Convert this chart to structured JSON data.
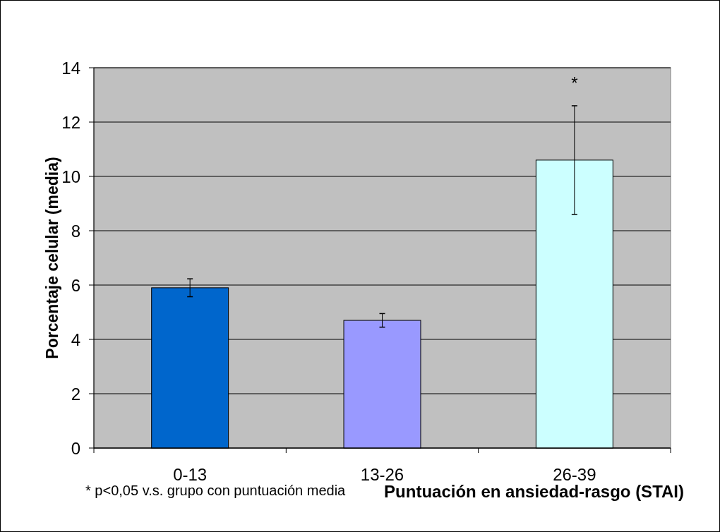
{
  "chart_data": {
    "type": "bar",
    "xlabel": "Puntuación en ansiedad-rasgo (STAI)",
    "ylabel": "Porcentaje celular (media)",
    "categories": [
      "0-13",
      "13-26",
      "26-39"
    ],
    "values": [
      5.9,
      4.7,
      10.6
    ],
    "colors": [
      "#0066cc",
      "#9999ff",
      "#ccffff"
    ],
    "errors": [
      0.33,
      0.25,
      2.0
    ],
    "ylim": [
      0,
      14
    ],
    "yticks": [
      0,
      2,
      4,
      6,
      8,
      10,
      12,
      14
    ],
    "grid": "y",
    "annotations": [
      {
        "text": "*",
        "x": "26-39",
        "y": 12.6
      },
      "* p<0,05 v.s. grupo con puntuación media"
    ]
  }
}
